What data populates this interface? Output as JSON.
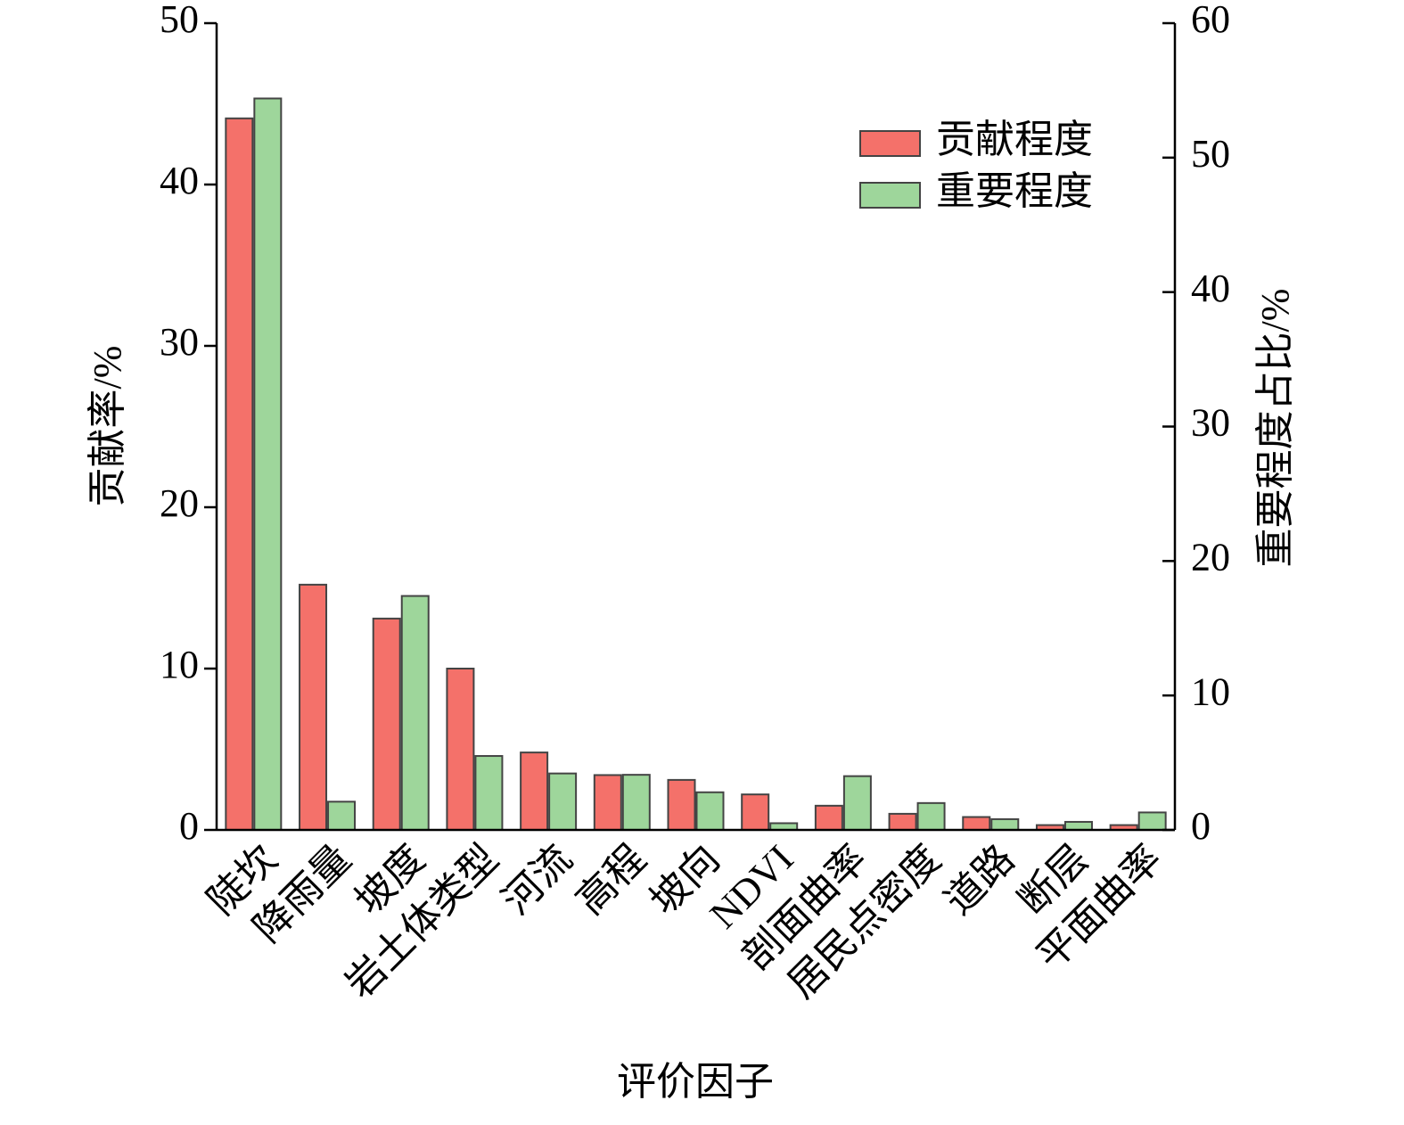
{
  "chart_data": {
    "type": "bar",
    "x_label": "评价因子",
    "y_label": "贡献率/%",
    "y2_label": "重要程度占比/%",
    "categories": [
      "陡坎",
      "降雨量",
      "坡度",
      "岩土体类型",
      "河流",
      "高程",
      "坡向",
      "NDVI",
      "剖面曲率",
      "居民点密度",
      "道路",
      "断层",
      "平面曲率"
    ],
    "series": [
      {
        "name": "贡献程度",
        "color": "#f4716a",
        "values": [
          44.1,
          15.2,
          13.1,
          10.0,
          4.8,
          3.4,
          3.1,
          2.2,
          1.5,
          1.0,
          0.8,
          0.3,
          0.3
        ]
      },
      {
        "name": "重要程度",
        "color": "#9ed69b",
        "axis": "y2",
        "values": [
          54.4,
          2.1,
          17.4,
          5.5,
          4.2,
          4.1,
          2.8,
          0.5,
          4.0,
          2.0,
          0.8,
          0.6,
          1.3
        ]
      }
    ],
    "ylim": [
      0,
      50
    ],
    "yticks": [
      0,
      10,
      20,
      30,
      40,
      50
    ],
    "y2lim": [
      0,
      60
    ],
    "y2ticks": [
      0,
      10,
      20,
      30,
      40,
      50,
      60
    ],
    "legend": "upper right"
  }
}
